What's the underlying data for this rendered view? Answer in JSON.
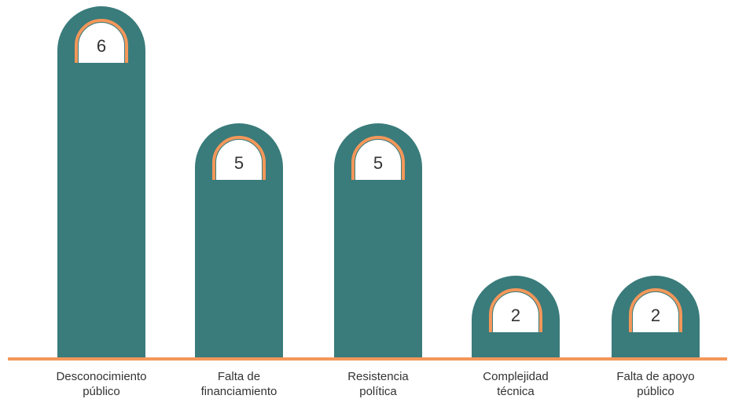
{
  "chart_data": {
    "type": "bar",
    "categories": [
      [
        "Desconocimiento",
        "público"
      ],
      [
        "Falta de",
        "financiamiento"
      ],
      [
        "Resistencia",
        "política"
      ],
      [
        "Complejidad",
        "técnica"
      ],
      [
        "Falta de apoyo",
        "público"
      ]
    ],
    "values": [
      6,
      5,
      5,
      2,
      2
    ],
    "title": "",
    "xlabel": "",
    "ylabel": "",
    "grid": false,
    "legend": "none",
    "colors": {
      "bar": "#3a7b7b",
      "accent": "#f4975a",
      "badge": "#ffffff"
    }
  }
}
